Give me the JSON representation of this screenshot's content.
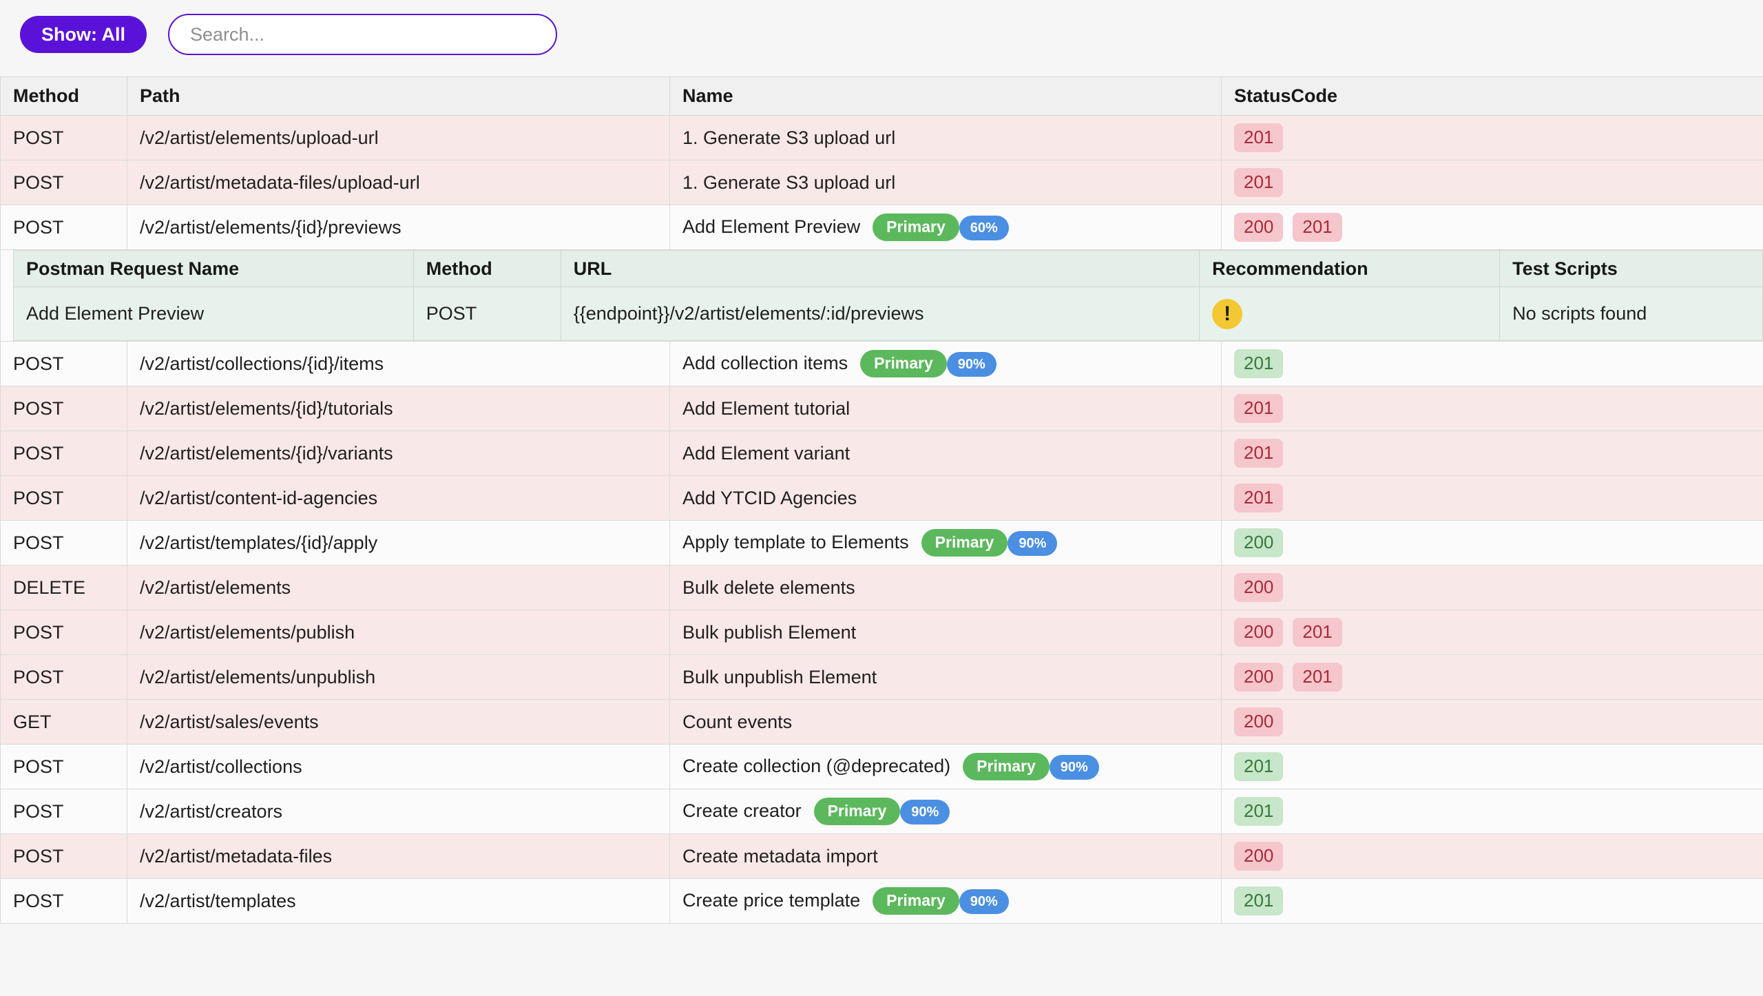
{
  "toolbar": {
    "show_button_label": "Show: All",
    "search_placeholder": "Search...",
    "search_value": ""
  },
  "colors": {
    "accent_purple": "#5a12d8",
    "row_uncovered_bg": "#f9e8e8",
    "row_covered_bg": "#fbfbfb",
    "status_red_bg": "#f5c7cc",
    "status_red_text": "#ab2936",
    "status_green_bg": "#c8e6c9",
    "status_green_text": "#357a3b",
    "primary_badge_green": "#5cb85c",
    "percent_badge_blue": "#4a8fe2",
    "detail_table_bg": "#e8f2ec",
    "warning_icon_yellow": "#f3c832"
  },
  "table": {
    "headers": [
      "Method",
      "Path",
      "Name",
      "StatusCode"
    ],
    "rows": [
      {
        "method": "POST",
        "path": "/v2/artist/elements/upload-url",
        "name": "1. Generate S3 upload url",
        "badges": [],
        "status": [
          {
            "code": "201",
            "tone": "miss"
          }
        ],
        "tone": "miss"
      },
      {
        "method": "POST",
        "path": "/v2/artist/metadata-files/upload-url",
        "name": "1. Generate S3 upload url",
        "badges": [],
        "status": [
          {
            "code": "201",
            "tone": "miss"
          }
        ],
        "tone": "miss"
      },
      {
        "method": "POST",
        "path": "/v2/artist/elements/{id}/previews",
        "name": "Add Element Preview",
        "badges": [
          {
            "label": "Primary",
            "type": "primary"
          },
          {
            "label": "60%",
            "type": "percent"
          }
        ],
        "status": [
          {
            "code": "200",
            "tone": "miss"
          },
          {
            "code": "201",
            "tone": "miss"
          }
        ],
        "tone": "hit",
        "expanded": true
      },
      {
        "method": "POST",
        "path": "/v2/artist/collections/{id}/items",
        "name": "Add collection items",
        "badges": [
          {
            "label": "Primary",
            "type": "primary"
          },
          {
            "label": "90%",
            "type": "percent"
          }
        ],
        "status": [
          {
            "code": "201",
            "tone": "hit"
          }
        ],
        "tone": "hit"
      },
      {
        "method": "POST",
        "path": "/v2/artist/elements/{id}/tutorials",
        "name": "Add Element tutorial",
        "badges": [],
        "status": [
          {
            "code": "201",
            "tone": "miss"
          }
        ],
        "tone": "miss"
      },
      {
        "method": "POST",
        "path": "/v2/artist/elements/{id}/variants",
        "name": "Add Element variant",
        "badges": [],
        "status": [
          {
            "code": "201",
            "tone": "miss"
          }
        ],
        "tone": "miss"
      },
      {
        "method": "POST",
        "path": "/v2/artist/content-id-agencies",
        "name": "Add YTCID Agencies",
        "badges": [],
        "status": [
          {
            "code": "201",
            "tone": "miss"
          }
        ],
        "tone": "miss"
      },
      {
        "method": "POST",
        "path": "/v2/artist/templates/{id}/apply",
        "name": "Apply template to Elements",
        "badges": [
          {
            "label": "Primary",
            "type": "primary"
          },
          {
            "label": "90%",
            "type": "percent"
          }
        ],
        "status": [
          {
            "code": "200",
            "tone": "hit"
          }
        ],
        "tone": "hit"
      },
      {
        "method": "DELETE",
        "path": "/v2/artist/elements",
        "name": "Bulk delete elements",
        "badges": [],
        "status": [
          {
            "code": "200",
            "tone": "miss"
          }
        ],
        "tone": "miss"
      },
      {
        "method": "POST",
        "path": "/v2/artist/elements/publish",
        "name": "Bulk publish Element",
        "badges": [],
        "status": [
          {
            "code": "200",
            "tone": "miss"
          },
          {
            "code": "201",
            "tone": "miss"
          }
        ],
        "tone": "miss"
      },
      {
        "method": "POST",
        "path": "/v2/artist/elements/unpublish",
        "name": "Bulk unpublish Element",
        "badges": [],
        "status": [
          {
            "code": "200",
            "tone": "miss"
          },
          {
            "code": "201",
            "tone": "miss"
          }
        ],
        "tone": "miss"
      },
      {
        "method": "GET",
        "path": "/v2/artist/sales/events",
        "name": "Count events",
        "badges": [],
        "status": [
          {
            "code": "200",
            "tone": "miss"
          }
        ],
        "tone": "miss"
      },
      {
        "method": "POST",
        "path": "/v2/artist/collections",
        "name": "Create collection (@deprecated)",
        "badges": [
          {
            "label": "Primary",
            "type": "primary"
          },
          {
            "label": "90%",
            "type": "percent"
          }
        ],
        "status": [
          {
            "code": "201",
            "tone": "hit"
          }
        ],
        "tone": "hit"
      },
      {
        "method": "POST",
        "path": "/v2/artist/creators",
        "name": "Create creator",
        "badges": [
          {
            "label": "Primary",
            "type": "primary"
          },
          {
            "label": "90%",
            "type": "percent"
          }
        ],
        "status": [
          {
            "code": "201",
            "tone": "hit"
          }
        ],
        "tone": "hit"
      },
      {
        "method": "POST",
        "path": "/v2/artist/metadata-files",
        "name": "Create metadata import",
        "badges": [],
        "status": [
          {
            "code": "200",
            "tone": "miss"
          }
        ],
        "tone": "miss"
      },
      {
        "method": "POST",
        "path": "/v2/artist/templates",
        "name": "Create price template",
        "badges": [
          {
            "label": "Primary",
            "type": "primary"
          },
          {
            "label": "90%",
            "type": "percent"
          }
        ],
        "status": [
          {
            "code": "201",
            "tone": "hit"
          }
        ],
        "tone": "hit"
      }
    ]
  },
  "detail_table": {
    "headers": [
      "Postman Request Name",
      "Method",
      "URL",
      "Recommendation",
      "Test Scripts"
    ],
    "row": {
      "request_name": "Add Element Preview",
      "method": "POST",
      "url": "{{endpoint}}/v2/artist/elements/:id/previews",
      "recommendation_icon": "warning-exclamation-icon",
      "warning_glyph": "!",
      "test_scripts": "No scripts found"
    }
  }
}
